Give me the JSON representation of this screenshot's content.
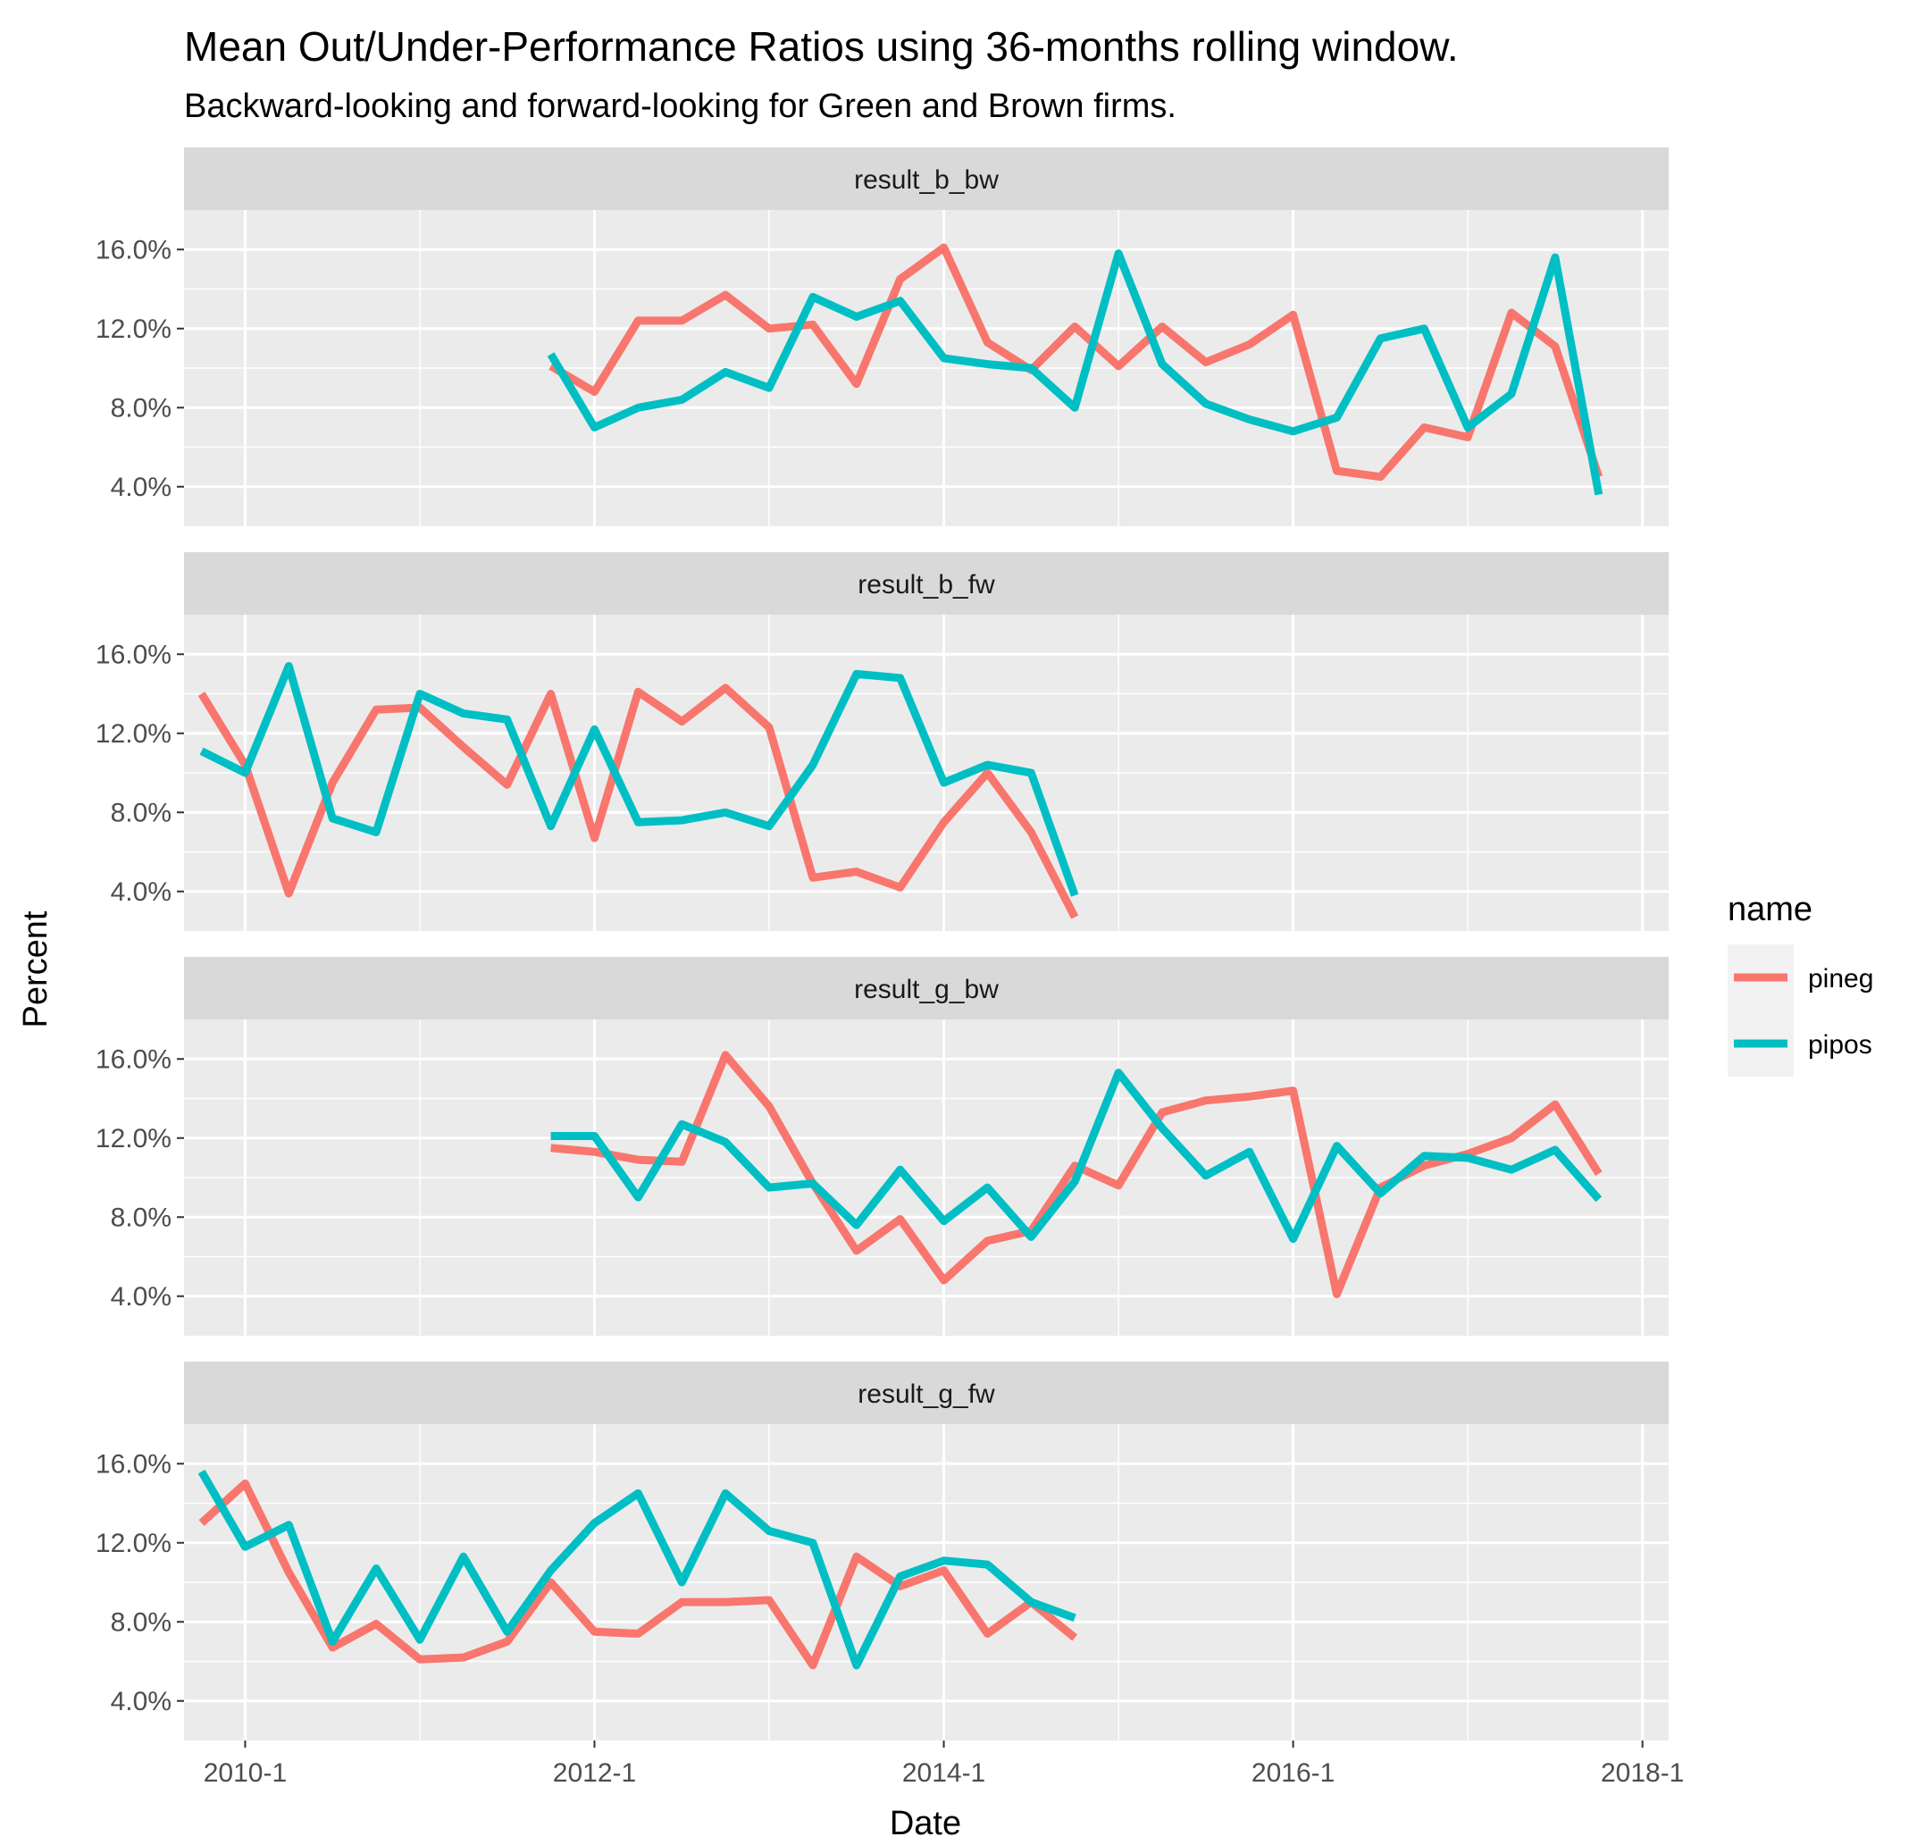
{
  "chart_data": {
    "type": "line",
    "title": "Mean Out/Under-Performance Ratios using 36-months rolling window.",
    "subtitle": "Backward-looking and forward-looking for Green and Brown firms.",
    "xlabel": "Date",
    "ylabel": "Percent",
    "x_ticks": [
      "2010-1",
      "2012-1",
      "2014-1",
      "2016-1",
      "2018-1"
    ],
    "y_ticks": [
      "4.0%",
      "8.0%",
      "12.0%",
      "16.0%"
    ],
    "y_tick_values": [
      4,
      8,
      12,
      16
    ],
    "xlim": [
      2009.65,
      2018.15
    ],
    "ylim": [
      2.0,
      18.0
    ],
    "grid": true,
    "legend": {
      "title": "name",
      "placement": "right",
      "entries": [
        {
          "name": "pineg",
          "color": "#F8766D"
        },
        {
          "name": "pipos",
          "color": "#00BFC4"
        }
      ]
    },
    "panels": [
      {
        "label": "result_b_bw",
        "x": [
          2011.75,
          2012.0,
          2012.25,
          2012.5,
          2012.75,
          2013.0,
          2013.25,
          2013.5,
          2013.75,
          2014.0,
          2014.25,
          2014.5,
          2014.75,
          2015.0,
          2015.25,
          2015.5,
          2015.75,
          2016.0,
          2016.25,
          2016.5,
          2016.75,
          2017.0,
          2017.25,
          2017.5,
          2017.75
        ],
        "series": [
          {
            "name": "pineg",
            "values": [
              10.1,
              8.8,
              12.4,
              12.4,
              13.7,
              12.0,
              12.2,
              9.2,
              14.5,
              16.1,
              11.3,
              9.9,
              12.1,
              10.1,
              12.1,
              10.3,
              11.2,
              12.7,
              4.8,
              4.5,
              7.0,
              6.5,
              12.8,
              11.1,
              4.5
            ]
          },
          {
            "name": "pipos",
            "values": [
              10.7,
              7.0,
              8.0,
              8.4,
              9.8,
              9.0,
              13.6,
              12.6,
              13.4,
              10.5,
              10.2,
              10.0,
              8.0,
              15.8,
              10.2,
              8.2,
              7.4,
              6.8,
              7.5,
              11.5,
              12.0,
              7.0,
              8.7,
              15.6,
              3.6
            ]
          }
        ]
      },
      {
        "label": "result_b_fw",
        "x": [
          2009.75,
          2010.0,
          2010.25,
          2010.5,
          2010.75,
          2011.0,
          2011.25,
          2011.5,
          2011.75,
          2012.0,
          2012.25,
          2012.5,
          2012.75,
          2013.0,
          2013.25,
          2013.5,
          2013.75,
          2014.0,
          2014.25,
          2014.5,
          2014.75
        ],
        "series": [
          {
            "name": "pineg",
            "values": [
              14.0,
              10.4,
              3.9,
              9.5,
              13.2,
              13.3,
              11.3,
              9.4,
              14.0,
              6.7,
              14.1,
              12.6,
              14.3,
              12.3,
              4.7,
              5.0,
              4.2,
              7.5,
              10.0,
              7.0,
              2.7
            ]
          },
          {
            "name": "pipos",
            "values": [
              11.1,
              10.0,
              15.4,
              7.7,
              7.0,
              14.0,
              13.0,
              12.7,
              7.3,
              12.2,
              7.5,
              7.6,
              8.0,
              7.3,
              10.4,
              15.0,
              14.8,
              9.5,
              10.4,
              10.0,
              3.8
            ]
          }
        ]
      },
      {
        "label": "result_g_bw",
        "x": [
          2011.75,
          2012.0,
          2012.25,
          2012.5,
          2012.75,
          2013.0,
          2013.25,
          2013.5,
          2013.75,
          2014.0,
          2014.25,
          2014.5,
          2014.75,
          2015.0,
          2015.25,
          2015.5,
          2015.75,
          2016.0,
          2016.25,
          2016.5,
          2016.75,
          2017.0,
          2017.25,
          2017.5,
          2017.75
        ],
        "series": [
          {
            "name": "pineg",
            "values": [
              11.5,
              11.3,
              10.9,
              10.8,
              16.2,
              13.6,
              9.7,
              6.3,
              7.9,
              4.8,
              6.8,
              7.3,
              10.6,
              9.6,
              13.3,
              13.9,
              14.1,
              14.4,
              4.1,
              9.5,
              10.6,
              11.2,
              12.0,
              13.7,
              10.2
            ]
          },
          {
            "name": "pipos",
            "values": [
              12.1,
              12.1,
              9.0,
              12.7,
              11.8,
              9.5,
              9.7,
              7.6,
              10.4,
              7.8,
              9.5,
              7.0,
              9.8,
              15.3,
              12.5,
              10.1,
              11.3,
              6.9,
              11.6,
              9.2,
              11.1,
              11.0,
              10.4,
              11.4,
              8.9
            ]
          }
        ]
      },
      {
        "label": "result_g_fw",
        "x": [
          2009.75,
          2010.0,
          2010.25,
          2010.5,
          2010.75,
          2011.0,
          2011.25,
          2011.5,
          2011.75,
          2012.0,
          2012.25,
          2012.5,
          2012.75,
          2013.0,
          2013.25,
          2013.5,
          2013.75,
          2014.0,
          2014.25,
          2014.5,
          2014.75
        ],
        "series": [
          {
            "name": "pineg",
            "values": [
              13.0,
              15.0,
              10.5,
              6.7,
              7.9,
              6.1,
              6.2,
              7.0,
              10.0,
              7.5,
              7.4,
              9.0,
              9.0,
              9.1,
              5.8,
              11.3,
              9.8,
              10.6,
              7.4,
              9.0,
              7.2
            ]
          },
          {
            "name": "pipos",
            "values": [
              15.6,
              11.8,
              12.9,
              7.0,
              10.7,
              7.1,
              11.3,
              7.5,
              10.6,
              13.0,
              14.5,
              10.0,
              14.5,
              12.6,
              12.0,
              5.8,
              10.3,
              11.1,
              10.9,
              9.0,
              8.2
            ]
          }
        ]
      }
    ]
  }
}
